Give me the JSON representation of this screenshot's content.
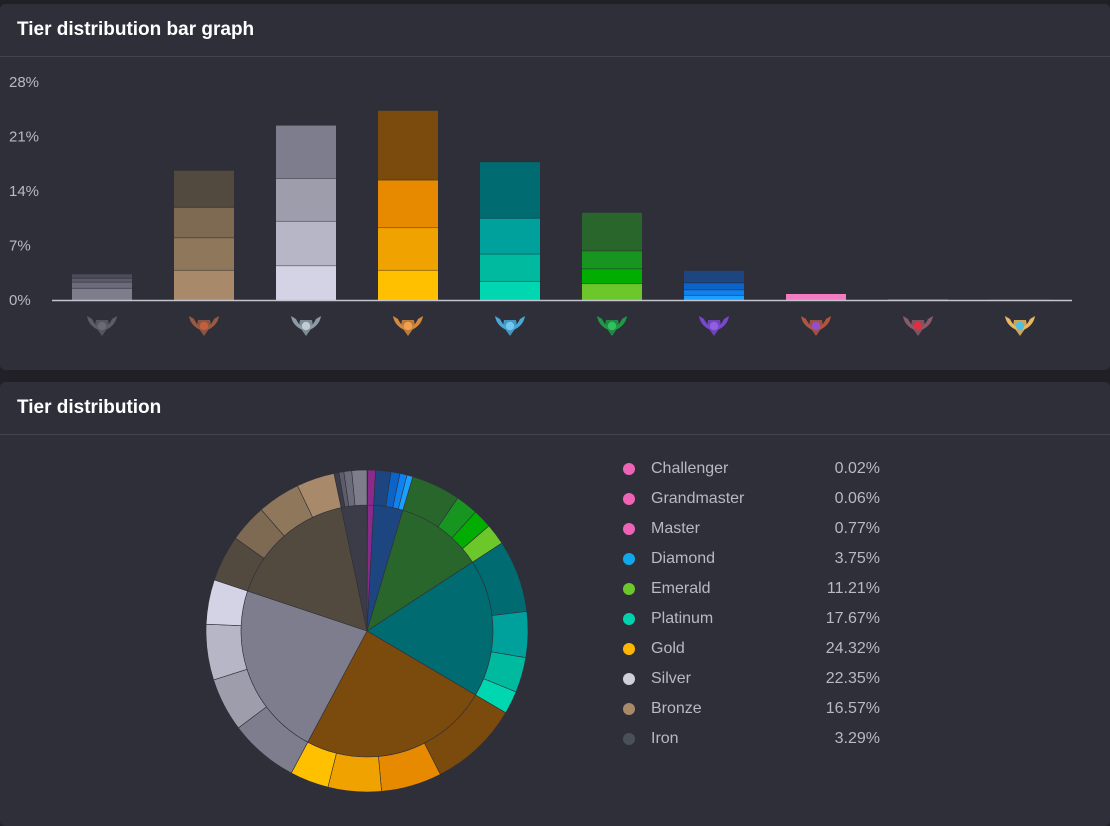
{
  "bar_panel": {
    "title": "Tier distribution bar graph"
  },
  "pie_panel": {
    "title": "Tier distribution"
  },
  "chart_data": [
    {
      "type": "bar",
      "stacked": true,
      "y_ticks": [
        "0%",
        "7%",
        "14%",
        "21%",
        "28%"
      ],
      "ylim": [
        0,
        28
      ],
      "grid": false,
      "categories": [
        "Iron",
        "Bronze",
        "Silver",
        "Gold",
        "Platinum",
        "Emerald",
        "Diamond",
        "Master",
        "Grandmaster",
        "Challenger"
      ],
      "segments": [
        [
          1.5,
          0.8,
          0.5,
          0.5
        ],
        [
          3.8,
          4.2,
          3.9,
          4.7
        ],
        [
          4.4,
          5.7,
          5.5,
          6.8
        ],
        [
          3.8,
          5.5,
          6.1,
          8.9
        ],
        [
          2.4,
          3.5,
          4.6,
          7.2
        ],
        [
          2.1,
          1.9,
          2.3,
          4.9
        ],
        [
          0.6,
          0.7,
          0.9,
          1.55
        ],
        [
          0.77
        ],
        [
          0.06
        ],
        [
          0.02
        ]
      ],
      "segment_colors": [
        [
          "#7d7d8c",
          "#6b6b7a",
          "#5c5c6a",
          "#4d4d5a"
        ],
        [
          "#a8896a",
          "#8f775b",
          "#7e6a52",
          "#524a3f"
        ],
        [
          "#d4d3e6",
          "#b6b6c6",
          "#9d9dac",
          "#7d7d8e"
        ],
        [
          "#ffc000",
          "#f0a300",
          "#e88a00",
          "#7b4a0d"
        ],
        [
          "#00d6b0",
          "#00baa0",
          "#00a09c",
          "#006b70"
        ],
        [
          "#6cc72a",
          "#00ad00",
          "#189420",
          "#29662c"
        ],
        [
          "#1aa0ff",
          "#1082f0",
          "#0c63c8",
          "#1d4580"
        ],
        [
          "#f57ac4"
        ],
        [
          "#e860a8"
        ],
        [
          "#d060a0"
        ]
      ],
      "icon_colors": [
        "#5c5c66",
        "#9a5a42",
        "#8c9aa4",
        "#d48a3c",
        "#4aa8d8",
        "#1f9a44",
        "#7a48d0",
        "#b2553e",
        "#8a5a6a",
        "#e8b860"
      ],
      "gem_colors": [
        "#6a6a72",
        "#c06040",
        "#c0ccd4",
        "#f0a050",
        "#70c8f0",
        "#30c060",
        "#9060e0",
        "#9050d0",
        "#e03040",
        "#50c0e0"
      ]
    },
    {
      "type": "pie",
      "style": "sunburst",
      "series": [
        {
          "name": "Challenger",
          "value": 0.02,
          "legend_value": "0.02%",
          "color": "#ee63b6"
        },
        {
          "name": "Grandmaster",
          "value": 0.06,
          "legend_value": "0.06%",
          "color": "#ee63b6"
        },
        {
          "name": "Master",
          "value": 0.77,
          "legend_value": "0.77%",
          "color": "#ee63b6"
        },
        {
          "name": "Diamond",
          "value": 3.75,
          "legend_value": "3.75%",
          "color": "#0fa8ea"
        },
        {
          "name": "Emerald",
          "value": 11.21,
          "legend_value": "11.21%",
          "color": "#6cc72a"
        },
        {
          "name": "Platinum",
          "value": 17.67,
          "legend_value": "17.67%",
          "color": "#00d2b0"
        },
        {
          "name": "Gold",
          "value": 24.32,
          "legend_value": "24.32%",
          "color": "#ffb600"
        },
        {
          "name": "Silver",
          "value": 22.35,
          "legend_value": "22.35%",
          "color": "#cfd0da"
        },
        {
          "name": "Bronze",
          "value": 16.57,
          "legend_value": "16.57%",
          "color": "#a8896a"
        },
        {
          "name": "Iron",
          "value": 3.29,
          "legend_value": "3.29%",
          "color": "#4a5058"
        }
      ],
      "inner_colors": [
        "#ee63b6",
        "#c75ab0",
        "#8a2a8a",
        "#1d4580",
        "#29662c",
        "#006b70",
        "#7b4a0d",
        "#7d7d8e",
        "#524a3f",
        "#3c3c48"
      ],
      "outer_colors": [
        [
          "#ee63b6"
        ],
        [
          "#c75ab0"
        ],
        [
          "#8a2a8a"
        ],
        [
          "#1d4580",
          "#0c63c8",
          "#1082f0",
          "#1aa0ff"
        ],
        [
          "#29662c",
          "#189420",
          "#00ad00",
          "#6cc72a"
        ],
        [
          "#006b70",
          "#00a09c",
          "#00baa0",
          "#00d6b0"
        ],
        [
          "#7b4a0d",
          "#e88a00",
          "#f0a300",
          "#ffc000"
        ],
        [
          "#7d7d8e",
          "#9d9dac",
          "#b6b6c6",
          "#d4d3e6"
        ],
        [
          "#524a3f",
          "#7e6a52",
          "#8f775b",
          "#a8896a"
        ],
        [
          "#3c3c48",
          "#5c5c6a",
          "#6b6b7a",
          "#7d7d8c"
        ]
      ],
      "outer_shares": [
        [
          1
        ],
        [
          1
        ],
        [
          1
        ],
        [
          0.41,
          0.24,
          0.19,
          0.16
        ],
        [
          0.44,
          0.2,
          0.17,
          0.19
        ],
        [
          0.41,
          0.26,
          0.2,
          0.13
        ],
        [
          0.37,
          0.25,
          0.22,
          0.16
        ],
        [
          0.31,
          0.24,
          0.25,
          0.2
        ],
        [
          0.28,
          0.23,
          0.26,
          0.23
        ],
        [
          0.15,
          0.15,
          0.24,
          0.46
        ]
      ]
    }
  ]
}
